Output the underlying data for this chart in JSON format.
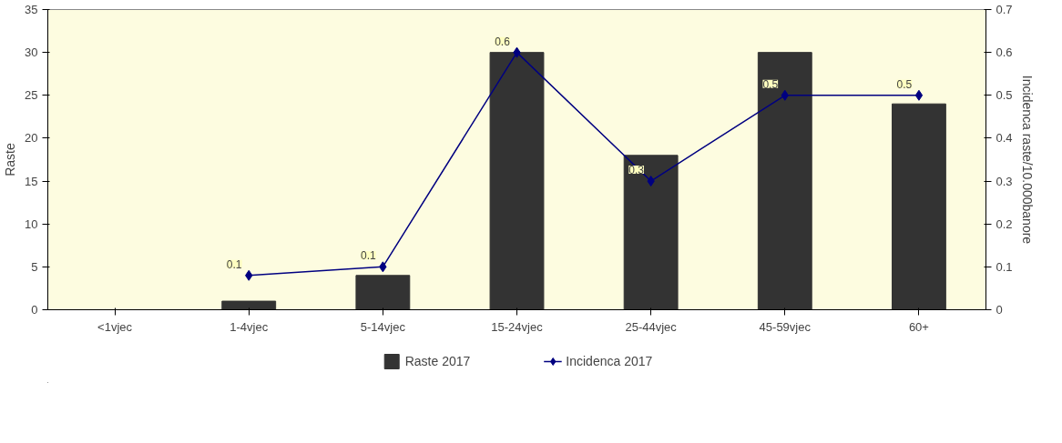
{
  "chart_data": {
    "type": "bar",
    "ylabel": "Raste",
    "y2label": "Incidenca raste/10.000banore",
    "categories": [
      "<1vjec",
      "1-4vjec",
      "5-14vjec",
      "15-24vjec",
      "25-44vjec",
      "45-59vjec",
      "60+"
    ],
    "series": [
      {
        "name": "Raste 2017",
        "type": "bar",
        "color": "#333333",
        "values": [
          0,
          1,
          4,
          30,
          18,
          30,
          24
        ]
      },
      {
        "name": "Incidenca 2017",
        "type": "line",
        "axis": "y2",
        "color": "#000080",
        "marker": "diamond",
        "values": [
          null,
          0.08,
          0.1,
          0.6,
          0.3,
          0.5,
          0.5
        ],
        "value_labels": [
          null,
          "0.1",
          "0.1",
          "0.6",
          "0.3",
          "0.5",
          "0.5"
        ]
      }
    ],
    "ylim": [
      0,
      35
    ],
    "yticks": [
      0,
      5,
      10,
      15,
      20,
      25,
      30,
      35
    ],
    "y2lim": [
      0,
      0.7
    ],
    "y2ticks": [
      0,
      0.1,
      0.2,
      0.3,
      0.4,
      0.5,
      0.6,
      0.7
    ],
    "grid": false,
    "legend": "bottom"
  }
}
